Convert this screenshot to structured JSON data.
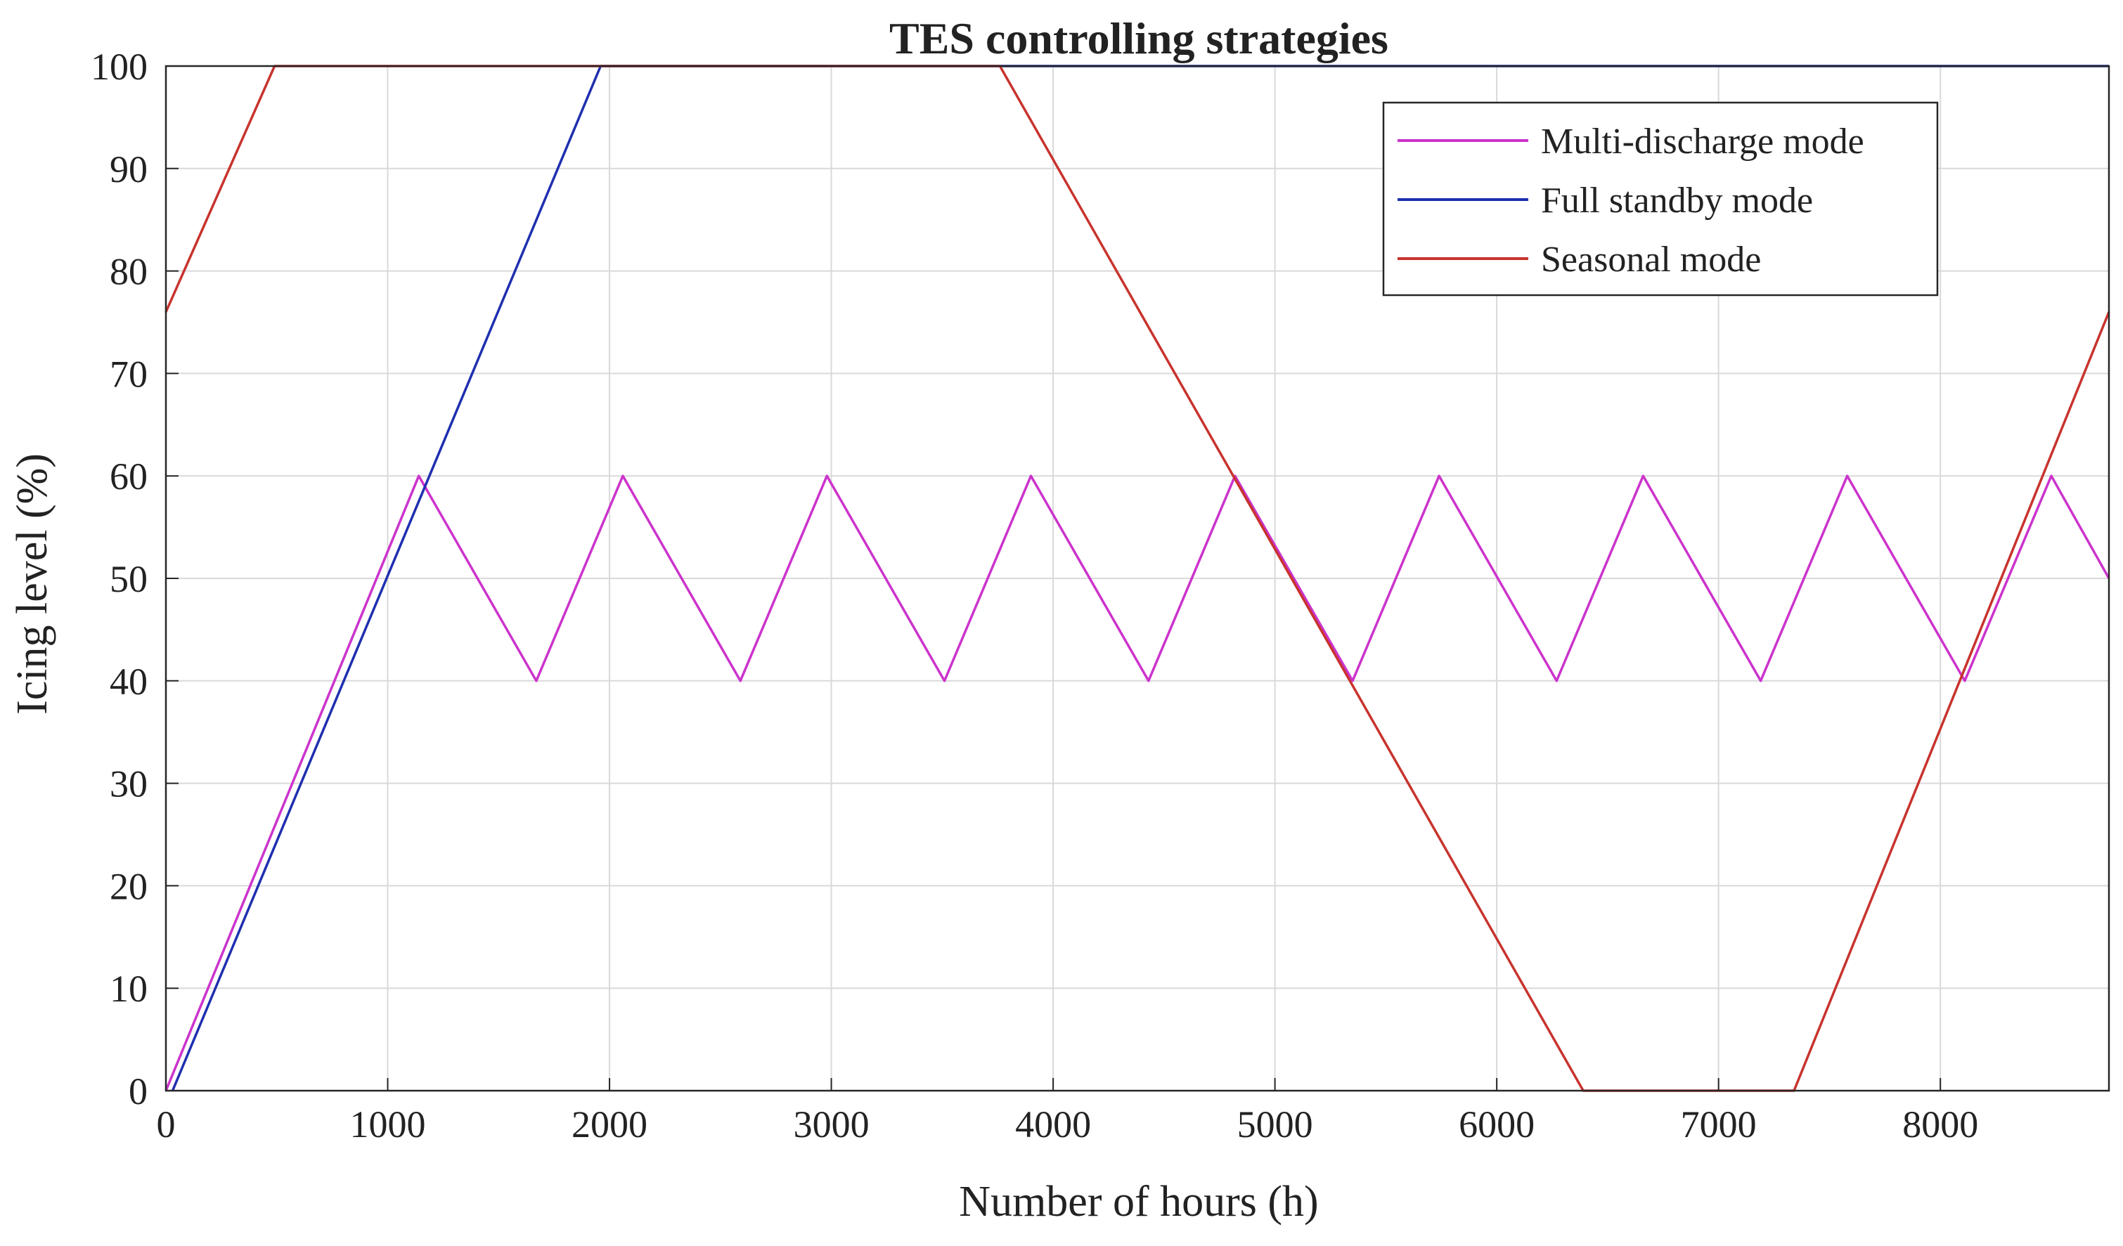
{
  "chart_data": {
    "type": "line",
    "title": "TES controlling strategies",
    "xlabel": "Number of hours (h)",
    "ylabel": "Icing level (%)",
    "xlim": [
      0,
      8760
    ],
    "ylim": [
      0,
      100
    ],
    "xticks": [
      0,
      1000,
      2000,
      3000,
      4000,
      5000,
      6000,
      7000,
      8000
    ],
    "yticks": [
      0,
      10,
      20,
      30,
      40,
      50,
      60,
      70,
      80,
      90,
      100
    ],
    "grid": true,
    "legend_position": "top-right",
    "series": [
      {
        "name": "Multi-discharge mode",
        "color": "#cc33cc",
        "x": [
          0,
          1140,
          1670,
          2060,
          2590,
          2980,
          3510,
          3900,
          4430,
          4820,
          5350,
          5740,
          6270,
          6660,
          7190,
          7580,
          8110,
          8500,
          8760
        ],
        "y": [
          0,
          60,
          40,
          60,
          40,
          60,
          40,
          60,
          40,
          60,
          40,
          60,
          40,
          60,
          40,
          60,
          40,
          60,
          50
        ]
      },
      {
        "name": "Full standby mode",
        "color": "#1f2fb0",
        "x": [
          30,
          1960,
          8760
        ],
        "y": [
          0,
          100,
          100
        ]
      },
      {
        "name": "Seasonal mode",
        "color": "#c8332d",
        "x": [
          0,
          490,
          3760,
          6390,
          7340,
          8760
        ],
        "y": [
          76,
          100,
          100,
          0,
          0,
          76
        ]
      }
    ]
  }
}
